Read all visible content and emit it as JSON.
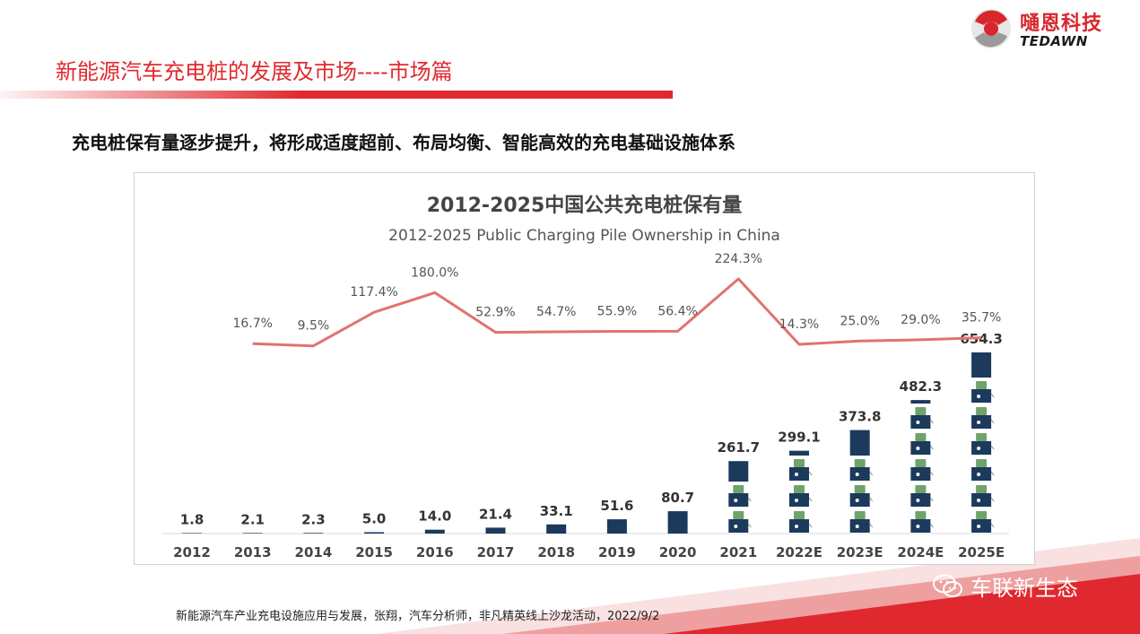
{
  "slide": {
    "title": "新能源汽车充电桩的发展及市场----市场篇",
    "subtitle": "充电桩保有量逐步提升，将形成适度超前、布局均衡、智能高效的充电基础设施体系",
    "source": "新能源汽车产业充电设施应用与发展，张翔，汽车分析师，非凡精英线上沙龙活动，2022/9/2"
  },
  "logo": {
    "cn": "嗵恩科技",
    "en": "TEDAWN"
  },
  "watermark": {
    "text": "车联新生态",
    "icon": "wechat-icon"
  },
  "colors": {
    "accent": "#e0292e",
    "line": "#e07370",
    "bar": "#1b3a5c",
    "bar_label": "#333333",
    "pct_label": "#555555"
  },
  "chart_data": {
    "type": "bar+line",
    "title": "2012-2025中国公共充电桩保有量",
    "subtitle": "2012-2025 Public Charging Pile Ownership in China",
    "categories": [
      "2012",
      "2013",
      "2014",
      "2015",
      "2016",
      "2017",
      "2018",
      "2019",
      "2020",
      "2021",
      "2022E",
      "2023E",
      "2024E",
      "2025E"
    ],
    "series": [
      {
        "type": "bar",
        "values": [
          1.8,
          2.1,
          2.3,
          5.0,
          14.0,
          21.4,
          33.1,
          51.6,
          80.7,
          261.7,
          299.1,
          373.8,
          482.3,
          654.3
        ],
        "labels": [
          "1.8",
          "2.1",
          "2.3",
          "5.0",
          "14.0",
          "21.4",
          "33.1",
          "51.6",
          "80.7",
          "261.7",
          "299.1",
          "373.8",
          "482.3",
          "654.3"
        ]
      },
      {
        "type": "line",
        "values": [
          null,
          16.7,
          9.5,
          117.4,
          180.0,
          52.9,
          54.7,
          55.9,
          56.4,
          224.3,
          14.3,
          25.0,
          29.0,
          35.7
        ],
        "labels": [
          "",
          "16.7%",
          "9.5%",
          "117.4%",
          "180.0%",
          "52.9%",
          "54.7%",
          "55.9%",
          "56.4%",
          "224.3%",
          "14.3%",
          "25.0%",
          "29.0%",
          "35.7%"
        ]
      }
    ],
    "grid": false,
    "legend": "none"
  }
}
